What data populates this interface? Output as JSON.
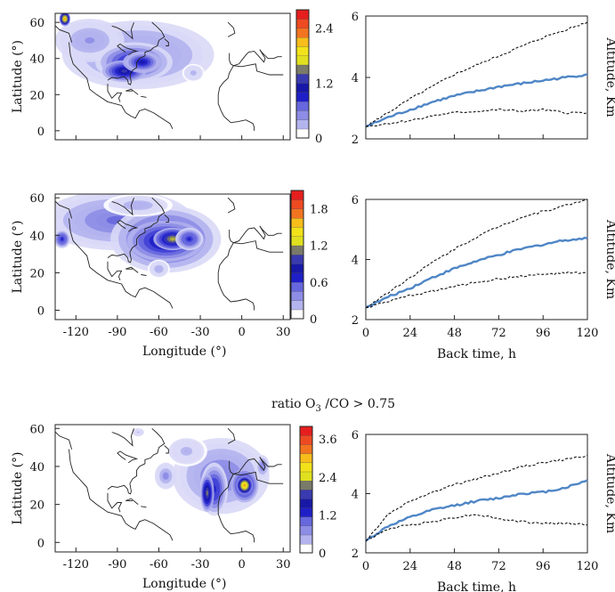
{
  "figure": {
    "middle_title": "ratio O3 /CO > 0.75"
  },
  "chart_data": [
    {
      "type": "heatmap",
      "panel": "row1-map",
      "ylabel": "Latitude (°)",
      "xlabel": "",
      "lat_ticks": [
        "0",
        "20",
        "40",
        "60"
      ],
      "lon_ticks": [],
      "xlim": [
        -135,
        35
      ],
      "ylim": [
        -5,
        65
      ],
      "colorbar": {
        "vmin": 0,
        "vmax": 2.8,
        "labels": [
          "0",
          "1.2",
          "2.4"
        ],
        "label_values": [
          0,
          1.2,
          2.4
        ]
      },
      "blobs": [
        {
          "lon": -75,
          "lat": 42,
          "rx": 55,
          "ry": 19,
          "v": 0.55
        },
        {
          "lon": -110,
          "lat": 50,
          "rx": 25,
          "ry": 12,
          "v": 0.45
        },
        {
          "lon": -78,
          "lat": 38,
          "rx": 28,
          "ry": 11,
          "v": 1.0
        },
        {
          "lon": -85,
          "lat": 33,
          "rx": 16,
          "ry": 6,
          "v": 1.2
        },
        {
          "lon": -72,
          "lat": 38,
          "rx": 14,
          "ry": 6,
          "v": 1.1
        },
        {
          "lon": -128,
          "lat": 62,
          "rx": 4,
          "ry": 4,
          "v": 2.2
        },
        {
          "lon": -35,
          "lat": 32,
          "rx": 8,
          "ry": 5,
          "v": 0.35
        }
      ]
    },
    {
      "type": "line",
      "panel": "row1-altitude",
      "ylabel": "Altitude, Km",
      "xlabel": "",
      "x_ticks": [],
      "y_ticks": [
        2,
        4,
        6
      ],
      "xlim": [
        0,
        120
      ],
      "ylim": [
        2,
        6
      ],
      "series": [
        {
          "style": "solid",
          "x": [
            0,
            12,
            24,
            36,
            48,
            60,
            72,
            84,
            96,
            108,
            120
          ],
          "y": [
            2.4,
            2.7,
            2.95,
            3.2,
            3.4,
            3.55,
            3.7,
            3.8,
            3.9,
            4.0,
            4.1
          ]
        },
        {
          "style": "dashed",
          "x": [
            0,
            12,
            24,
            36,
            48,
            60,
            72,
            84,
            96,
            108,
            120
          ],
          "y": [
            2.4,
            2.85,
            3.3,
            3.7,
            4.1,
            4.4,
            4.7,
            5.0,
            5.3,
            5.55,
            5.8
          ]
        },
        {
          "style": "dashed",
          "x": [
            0,
            12,
            24,
            36,
            48,
            60,
            72,
            84,
            96,
            108,
            120
          ],
          "y": [
            2.4,
            2.5,
            2.6,
            2.75,
            2.85,
            2.9,
            2.95,
            2.9,
            2.95,
            2.85,
            2.85
          ]
        }
      ]
    },
    {
      "type": "heatmap",
      "panel": "row2-map",
      "ylabel": "Latitude (°)",
      "xlabel": "Longitude (°)",
      "lat_ticks": [
        "0",
        "20",
        "40",
        "60"
      ],
      "lon_ticks": [
        "-120",
        "-90",
        "-60",
        "-30",
        "0",
        "30"
      ],
      "xlim": [
        -135,
        35
      ],
      "ylim": [
        -5,
        62
      ],
      "colorbar": {
        "vmin": 0,
        "vmax": 2.1,
        "labels": [
          "0",
          "0.6",
          "1.2",
          "1.8"
        ],
        "label_values": [
          0,
          0.6,
          1.2,
          1.8
        ]
      },
      "blobs": [
        {
          "lon": -90,
          "lat": 48,
          "rx": 55,
          "ry": 16,
          "v": 0.45
        },
        {
          "lon": -55,
          "lat": 38,
          "rx": 40,
          "ry": 18,
          "v": 0.75
        },
        {
          "lon": -55,
          "lat": 37,
          "rx": 28,
          "ry": 11,
          "v": 1.0
        },
        {
          "lon": -50,
          "lat": 38,
          "rx": 14,
          "ry": 6,
          "v": 1.2
        },
        {
          "lon": -130,
          "lat": 38,
          "rx": 6,
          "ry": 5,
          "v": 0.7
        },
        {
          "lon": -60,
          "lat": 22,
          "rx": 8,
          "ry": 5,
          "v": 0.3
        },
        {
          "lon": -38,
          "lat": 38,
          "rx": 10,
          "ry": 6,
          "v": 0.7
        },
        {
          "lon": -75,
          "lat": 56,
          "rx": 25,
          "ry": 6,
          "v": 0.3
        }
      ]
    },
    {
      "type": "line",
      "panel": "row2-altitude",
      "ylabel": "Altitude, Km",
      "xlabel": "Back time, h",
      "x_ticks": [
        0,
        24,
        48,
        72,
        96,
        120
      ],
      "y_ticks": [
        2,
        4,
        6
      ],
      "xlim": [
        0,
        120
      ],
      "ylim": [
        2,
        6
      ],
      "series": [
        {
          "style": "solid",
          "x": [
            0,
            12,
            24,
            36,
            48,
            60,
            72,
            84,
            96,
            108,
            120
          ],
          "y": [
            2.4,
            2.75,
            3.05,
            3.4,
            3.7,
            3.95,
            4.15,
            4.35,
            4.5,
            4.65,
            4.7
          ]
        },
        {
          "style": "dashed",
          "x": [
            0,
            12,
            24,
            36,
            48,
            60,
            72,
            84,
            96,
            108,
            120
          ],
          "y": [
            2.4,
            2.9,
            3.4,
            3.9,
            4.35,
            4.75,
            5.1,
            5.4,
            5.6,
            5.8,
            6.0
          ]
        },
        {
          "style": "dashed",
          "x": [
            0,
            12,
            24,
            36,
            48,
            60,
            72,
            84,
            96,
            108,
            120
          ],
          "y": [
            2.4,
            2.6,
            2.8,
            2.95,
            3.1,
            3.25,
            3.35,
            3.45,
            3.5,
            3.55,
            3.55
          ]
        }
      ]
    },
    {
      "type": "heatmap",
      "panel": "row3-map",
      "ylabel": "Latitude (°)",
      "xlabel": "Longitude (°)",
      "lat_ticks": [
        "0",
        "20",
        "40",
        "60"
      ],
      "lon_ticks": [
        "-120",
        "-90",
        "-60",
        "-30",
        "0",
        "30"
      ],
      "xlim": [
        -135,
        35
      ],
      "ylim": [
        -5,
        62
      ],
      "colorbar": {
        "vmin": 0,
        "vmax": 4.0,
        "labels": [
          "0",
          "1.2",
          "2.4",
          "3.6"
        ],
        "label_values": [
          0,
          1.2,
          2.4,
          3.6
        ]
      },
      "blobs": [
        {
          "lon": -15,
          "lat": 35,
          "rx": 35,
          "ry": 20,
          "v": 0.8
        },
        {
          "lon": -40,
          "lat": 48,
          "rx": 15,
          "ry": 8,
          "v": 0.5
        },
        {
          "lon": -20,
          "lat": 28,
          "rx": 10,
          "ry": 14,
          "v": 1.4
        },
        {
          "lon": 2,
          "lat": 30,
          "rx": 10,
          "ry": 9,
          "v": 1.8
        },
        {
          "lon": -25,
          "lat": 26,
          "rx": 5,
          "ry": 10,
          "v": 2.1
        },
        {
          "lon": 2,
          "lat": 30,
          "rx": 6,
          "ry": 5,
          "v": 3.2
        },
        {
          "lon": -55,
          "lat": 35,
          "rx": 8,
          "ry": 7,
          "v": 0.7
        },
        {
          "lon": -75,
          "lat": 58,
          "rx": 6,
          "ry": 3,
          "v": 0.4
        },
        {
          "lon": 15,
          "lat": 40,
          "rx": 5,
          "ry": 6,
          "v": 0.8
        }
      ]
    },
    {
      "type": "line",
      "panel": "row3-altitude",
      "ylabel": "Altitude, Km",
      "xlabel": "Back time, h",
      "x_ticks": [
        0,
        24,
        48,
        72,
        96,
        120
      ],
      "y_ticks": [
        2,
        4,
        6
      ],
      "xlim": [
        0,
        120
      ],
      "ylim": [
        2,
        6
      ],
      "series": [
        {
          "style": "solid",
          "x": [
            0,
            12,
            24,
            36,
            48,
            60,
            72,
            84,
            96,
            108,
            120
          ],
          "y": [
            2.4,
            2.9,
            3.2,
            3.45,
            3.6,
            3.75,
            3.85,
            4.0,
            4.05,
            4.2,
            4.45
          ]
        },
        {
          "style": "dashed",
          "x": [
            0,
            12,
            24,
            36,
            48,
            60,
            72,
            84,
            96,
            108,
            120
          ],
          "y": [
            2.4,
            3.3,
            3.75,
            4.05,
            4.3,
            4.5,
            4.7,
            4.9,
            5.05,
            5.15,
            5.3
          ]
        },
        {
          "style": "dashed",
          "x": [
            0,
            12,
            24,
            36,
            48,
            60,
            72,
            84,
            96,
            108,
            120
          ],
          "y": [
            2.4,
            2.8,
            2.95,
            3.05,
            3.2,
            3.3,
            3.15,
            3.05,
            3.0,
            3.0,
            2.95
          ]
        }
      ]
    }
  ]
}
